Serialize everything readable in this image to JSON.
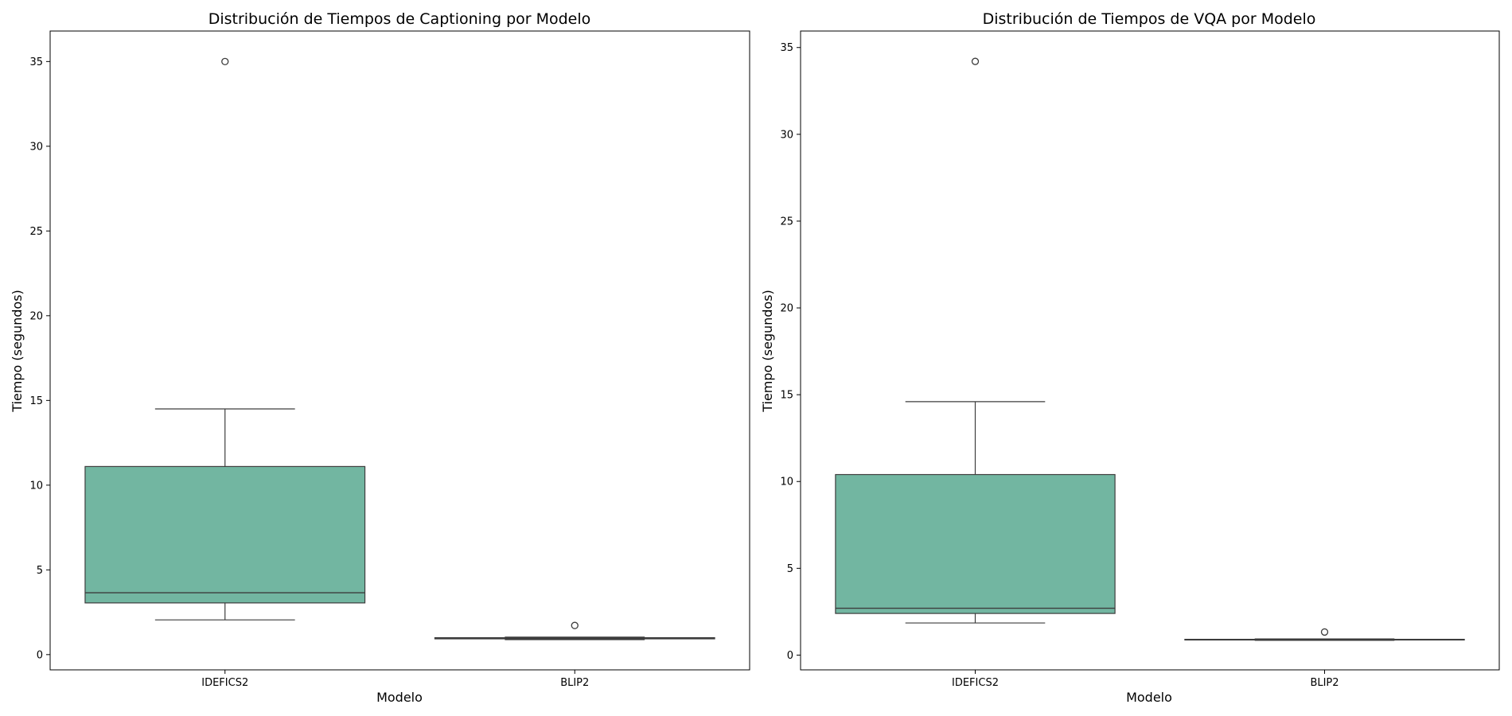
{
  "chart_data": [
    {
      "type": "box",
      "title": "Distribución de Tiempos de Captioning por Modelo",
      "xlabel": "Modelo",
      "ylabel": "Tiempo (segundos)",
      "categories": [
        "IDEFICS2",
        "BLIP2"
      ],
      "ylim": [
        -0.9,
        36.8
      ],
      "yticks": [
        0,
        5,
        10,
        15,
        20,
        25,
        30,
        35
      ],
      "grid": false,
      "box_color": "#72b6a1",
      "series": [
        {
          "category": "IDEFICS2",
          "whisker_low": 2.05,
          "q1": 3.05,
          "median": 3.65,
          "q3": 11.1,
          "whisker_high": 14.5,
          "outliers": [
            35.0
          ]
        },
        {
          "category": "BLIP2",
          "whisker_low": 0.88,
          "q1": 0.93,
          "median": 0.96,
          "q3": 1.0,
          "whisker_high": 1.03,
          "outliers": [
            1.72
          ]
        }
      ]
    },
    {
      "type": "box",
      "title": "Distribución de Tiempos de VQA por Modelo",
      "xlabel": "Modelo",
      "ylabel": "Tiempo (segundos)",
      "categories": [
        "IDEFICS2",
        "BLIP2"
      ],
      "ylim": [
        -0.85,
        35.95
      ],
      "yticks": [
        0,
        5,
        10,
        15,
        20,
        25,
        30,
        35
      ],
      "grid": false,
      "box_color": "#72b6a1",
      "series": [
        {
          "category": "IDEFICS2",
          "whisker_low": 1.85,
          "q1": 2.4,
          "median": 2.7,
          "q3": 10.4,
          "whisker_high": 14.6,
          "outliers": [
            34.2
          ]
        },
        {
          "category": "BLIP2",
          "whisker_low": 0.85,
          "q1": 0.87,
          "median": 0.89,
          "q3": 0.91,
          "whisker_high": 0.93,
          "outliers": [
            1.33
          ]
        }
      ]
    }
  ]
}
